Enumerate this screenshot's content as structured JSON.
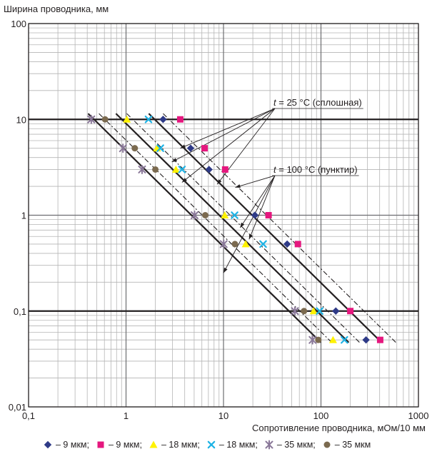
{
  "chart_data": {
    "type": "scatter",
    "xlabel": "Сопротивление проводника, мОм/10 мм",
    "ylabel": "Ширина проводника, мм",
    "x_scale": "log",
    "y_scale": "log",
    "xlim": [
      0.1,
      1000
    ],
    "ylim": [
      0.01,
      100
    ],
    "x_tick_labels": [
      "0,1",
      "1",
      "10",
      "100",
      "1000"
    ],
    "y_tick_labels": [
      "0,01",
      "0,1",
      "1",
      "10",
      "100"
    ],
    "grid": true,
    "legend_position": "bottom",
    "annotations": [
      {
        "var": "t",
        "text": " = 25 °C (сплошная)"
      },
      {
        "var": "t",
        "text": " = 100 °C (пунктир)"
      }
    ],
    "series": [
      {
        "label": "– 9 мкм;",
        "marker": "diamond",
        "color": "#2e3a87",
        "line": "solid",
        "points": [
          [
            2.4,
            10
          ],
          [
            4.6,
            5
          ],
          [
            7.1,
            3
          ],
          [
            21,
            1
          ],
          [
            45,
            0.5
          ],
          [
            142,
            0.1
          ],
          [
            290,
            0.05
          ]
        ]
      },
      {
        "label": "– 9 мкм;",
        "marker": "square",
        "color": "#e5177e",
        "line": "dashed",
        "points": [
          [
            3.6,
            10
          ],
          [
            6.4,
            5
          ],
          [
            10.4,
            3
          ],
          [
            29,
            1
          ],
          [
            58,
            0.5
          ],
          [
            200,
            0.1
          ],
          [
            405,
            0.05
          ]
        ]
      },
      {
        "label": "– 18 мкм;",
        "marker": "triangle",
        "color": "#fff200",
        "line": "solid",
        "points": [
          [
            1.02,
            10
          ],
          [
            2.08,
            5
          ],
          [
            3.25,
            3
          ],
          [
            10.3,
            1
          ],
          [
            16.9,
            0.5
          ],
          [
            84,
            0.1
          ],
          [
            133,
            0.05
          ]
        ]
      },
      {
        "label": "– 18 мкм;",
        "marker": "x",
        "color": "#1fb3e5",
        "line": "dashed",
        "points": [
          [
            1.7,
            10
          ],
          [
            2.25,
            5
          ],
          [
            3.75,
            3
          ],
          [
            13,
            1
          ],
          [
            25.5,
            0.5
          ],
          [
            97,
            0.1
          ],
          [
            174,
            0.05
          ]
        ]
      },
      {
        "label": "– 35 мкм;",
        "marker": "asterisk",
        "color": "#8a7899",
        "line": "solid",
        "points": [
          [
            0.44,
            10
          ],
          [
            0.93,
            5
          ],
          [
            1.46,
            3
          ],
          [
            5.05,
            1
          ],
          [
            10.05,
            0.5
          ],
          [
            54,
            0.1
          ],
          [
            82,
            0.05
          ]
        ]
      },
      {
        "label": "– 35 мкм",
        "marker": "circle",
        "color": "#7b6a4f",
        "line": "dashed",
        "points": [
          [
            0.61,
            10
          ],
          [
            1.23,
            5
          ],
          [
            2.0,
            3
          ],
          [
            6.5,
            1
          ],
          [
            13.1,
            0.5
          ],
          [
            67,
            0.1
          ],
          [
            94,
            0.05
          ]
        ]
      }
    ]
  }
}
